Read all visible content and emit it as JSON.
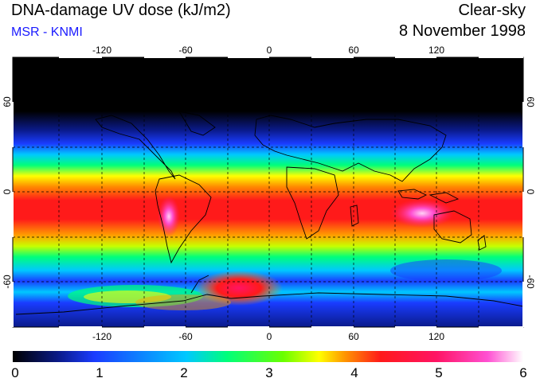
{
  "header": {
    "title": "DNA-damage UV dose (kJ/m2)",
    "subtitle": "MSR - KNMI",
    "mode": "Clear-sky",
    "date": "8 November 1998"
  },
  "map": {
    "lon_ticks": [
      "-120",
      "-60",
      "0",
      "60",
      "120"
    ],
    "lon_tick_values": [
      -120,
      -60,
      0,
      60,
      120
    ],
    "lat_ticks_left": [
      "60",
      "0",
      "-60"
    ],
    "lat_ticks_right": [
      "60",
      "0",
      "-60"
    ],
    "lat_tick_values": [
      60,
      0,
      -60
    ],
    "gridlines": "dashed",
    "lon_range": [
      -180,
      180
    ],
    "lat_range": [
      -90,
      90
    ]
  },
  "colorbar": {
    "labels": [
      "0",
      "1",
      "2",
      "3",
      "4",
      "5",
      "6"
    ],
    "min": 0,
    "max": 6,
    "colors": [
      "#000000",
      "#0a1a8a",
      "#1a3cff",
      "#00c8ff",
      "#00ff7a",
      "#6aff00",
      "#ffff00",
      "#ff9600",
      "#ff1a1a",
      "#ff1464",
      "#ff50d2",
      "#ffffff"
    ]
  }
}
